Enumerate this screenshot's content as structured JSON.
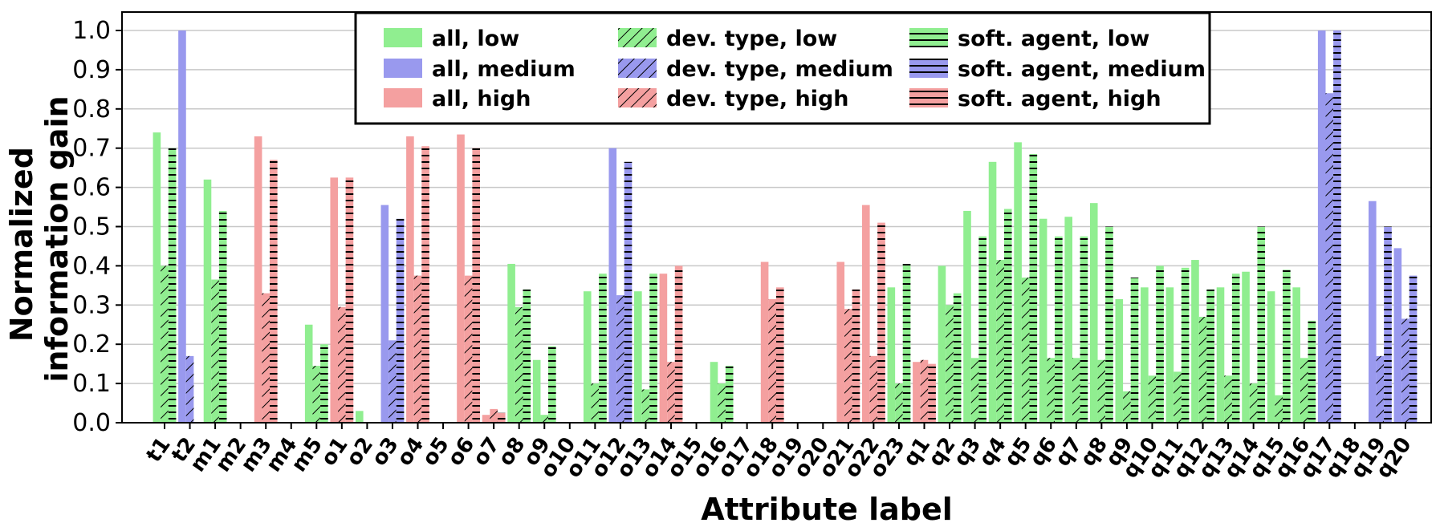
{
  "chart_data": {
    "type": "bar",
    "title": "",
    "xlabel": "Attribute label",
    "ylabel_lines": [
      "Normalized",
      "information gain"
    ],
    "ylim": [
      0,
      1.0
    ],
    "yticks": [
      "0.0",
      "0.1",
      "0.2",
      "0.3",
      "0.4",
      "0.5",
      "0.6",
      "0.7",
      "0.8",
      "0.9",
      "1.0"
    ],
    "grid": true,
    "legend_position": "top-center",
    "legend": [
      {
        "label": "all, low",
        "group": "all",
        "level": "low"
      },
      {
        "label": "all, medium",
        "group": "all",
        "level": "medium"
      },
      {
        "label": "all, high",
        "group": "all",
        "level": "high"
      },
      {
        "label": "dev. type, low",
        "group": "dev",
        "level": "low"
      },
      {
        "label": "dev. type, medium",
        "group": "dev",
        "level": "medium"
      },
      {
        "label": "dev. type, high",
        "group": "dev",
        "level": "high"
      },
      {
        "label": "soft. agent, low",
        "group": "soft",
        "level": "low"
      },
      {
        "label": "soft. agent, medium",
        "group": "soft",
        "level": "medium"
      },
      {
        "label": "soft. agent, high",
        "group": "soft",
        "level": "high"
      }
    ],
    "colors": {
      "low": "#90ee90",
      "medium": "#9999ee",
      "high": "#f4a0a0"
    },
    "categories": [
      "t1",
      "t2",
      "m1",
      "m2",
      "m3",
      "m4",
      "m5",
      "o1",
      "o2",
      "o3",
      "o4",
      "o5",
      "o6",
      "o7",
      "o8",
      "o9",
      "o10",
      "o11",
      "o12",
      "o13",
      "o14",
      "o15",
      "o16",
      "o17",
      "o18",
      "o19",
      "o20",
      "o21",
      "o22",
      "o23",
      "q1",
      "q2",
      "q3",
      "q4",
      "q5",
      "q6",
      "q7",
      "q8",
      "q9",
      "q10",
      "q11",
      "q12",
      "q13",
      "q14",
      "q15",
      "q16",
      "q17",
      "q18",
      "q19",
      "q20"
    ],
    "levels": [
      "low",
      "medium",
      "low",
      "low",
      "high",
      "low",
      "low",
      "high",
      "low",
      "medium",
      "high",
      "low",
      "high",
      "high",
      "low",
      "low",
      "low",
      "low",
      "medium",
      "low",
      "high",
      "low",
      "low",
      "low",
      "high",
      "low",
      "low",
      "high",
      "high",
      "low",
      "high",
      "low",
      "low",
      "low",
      "low",
      "low",
      "low",
      "low",
      "low",
      "low",
      "low",
      "low",
      "low",
      "low",
      "low",
      "low",
      "medium",
      "low",
      "medium",
      "medium"
    ],
    "series": [
      {
        "name": "all",
        "values": [
          0.74,
          1.0,
          0.62,
          0,
          0.73,
          0,
          0.25,
          0.625,
          0.03,
          0.555,
          0.73,
          0,
          0.735,
          0.02,
          0.405,
          0.16,
          0,
          0.335,
          0.7,
          0.335,
          0.38,
          0,
          0.155,
          0,
          0.41,
          0,
          0,
          0.41,
          0.555,
          0.345,
          0.155,
          0.4,
          0.54,
          0.665,
          0.715,
          0.52,
          0.525,
          0.56,
          0.315,
          0.345,
          0.345,
          0.415,
          0.345,
          0.385,
          0.335,
          0.345,
          1.0,
          0,
          0.565,
          0.445
        ]
      },
      {
        "name": "dev. type",
        "values": [
          0.4,
          0.17,
          0.365,
          0,
          0.33,
          0,
          0.145,
          0.295,
          0,
          0.21,
          0.375,
          0,
          0.375,
          0.035,
          0.295,
          0.02,
          0,
          0.1,
          0.325,
          0.085,
          0.155,
          0,
          0.1,
          0,
          0.315,
          0,
          0,
          0.29,
          0.17,
          0.1,
          0.16,
          0.3,
          0.165,
          0.415,
          0.37,
          0.165,
          0.165,
          0.16,
          0.08,
          0.12,
          0.13,
          0.27,
          0.12,
          0.1,
          0.07,
          0.165,
          0.84,
          0,
          0.17,
          0.265
        ]
      },
      {
        "name": "soft. agent",
        "values": [
          0.7,
          0,
          0.54,
          0,
          0.67,
          0,
          0.2,
          0.625,
          0,
          0.52,
          0.705,
          0,
          0.7,
          0.025,
          0.34,
          0.195,
          0,
          0.38,
          0.665,
          0.38,
          0.4,
          0,
          0.145,
          0,
          0.345,
          0,
          0,
          0.34,
          0.51,
          0.405,
          0.15,
          0.33,
          0.475,
          0.545,
          0.685,
          0.475,
          0.475,
          0.5,
          0.37,
          0.4,
          0.395,
          0.34,
          0.38,
          0.5,
          0.39,
          0.26,
          1.0,
          0,
          0.5,
          0.375
        ]
      }
    ]
  }
}
